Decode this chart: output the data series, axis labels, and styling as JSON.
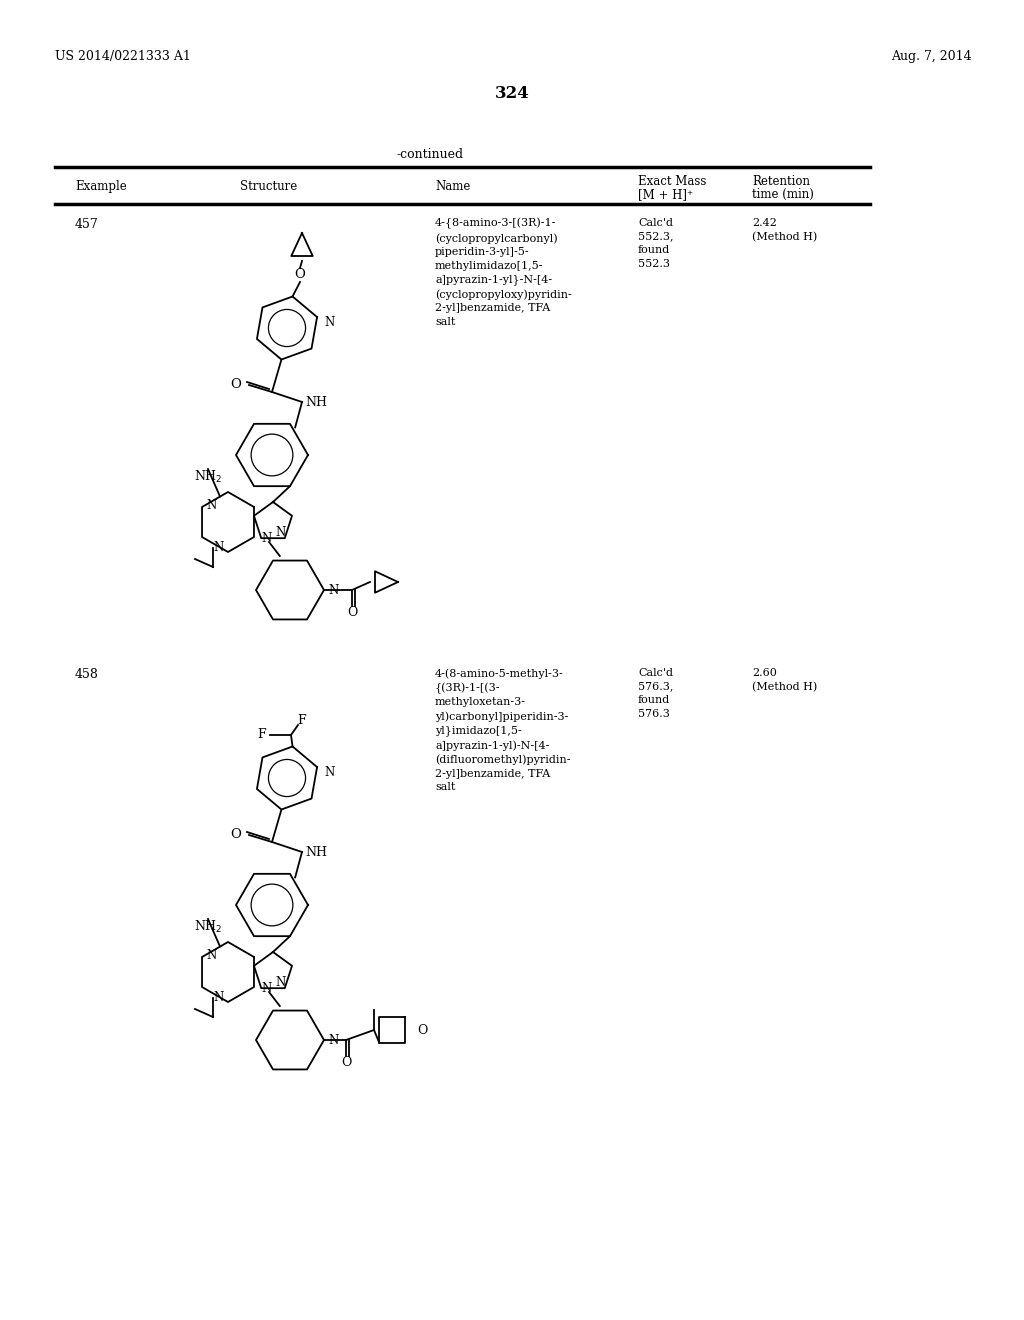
{
  "page_number": "324",
  "patent_number": "US 2014/0221333 A1",
  "patent_date": "Aug. 7, 2014",
  "continued_label": "-continued",
  "bg_color": "#ffffff",
  "text_color": "#000000",
  "row1_example": "457",
  "row1_name": "4-{8-amino-3-[(3R)-1-\n(cyclopropylcarbonyl)\npiperidin-3-yl]-5-\nmethylimidazo[1,5-\na]pyrazin-1-yl}-N-[4-\n(cyclopropyloxy)pyridin-\n2-yl]benzamide, TFA\nsalt",
  "row1_mass": "Calc'd\n552.3,\nfound\n552.3",
  "row1_retention": "2.42\n(Method H)",
  "row2_example": "458",
  "row2_name": "4-(8-amino-5-methyl-3-\n{(3R)-1-[(3-\nmethyloxetan-3-\nyl)carbonyl]piperidin-3-\nyl}imidazo[1,5-\na]pyrazin-1-yl)-N-[4-\n(difluoromethyl)pyridin-\n2-yl]benzamide, TFA\nsalt",
  "row2_mass": "Calc'd\n576.3,\nfound\n576.3",
  "row2_retention": "2.60\n(Method H)"
}
